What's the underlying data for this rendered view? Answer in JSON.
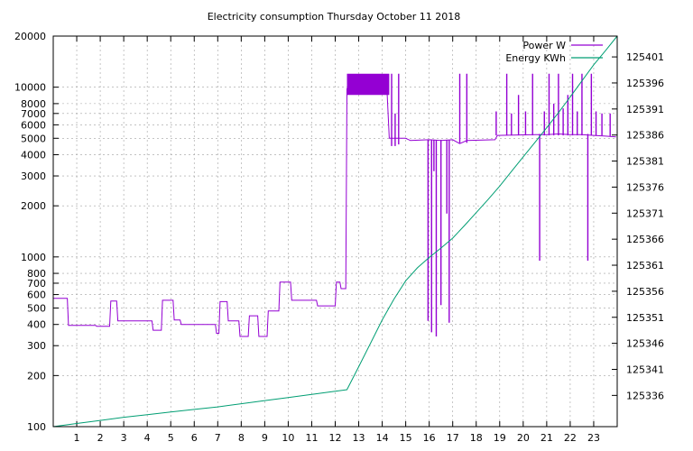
{
  "chart_data": {
    "type": "line",
    "title": "Electricity consumption Thursday October 11 2018",
    "xlabel": "",
    "ylabel": "",
    "y2label": "",
    "grid": true,
    "legend_position": "top-right",
    "x_ticks": [
      1,
      2,
      3,
      4,
      5,
      6,
      7,
      8,
      9,
      10,
      11,
      12,
      13,
      14,
      15,
      16,
      17,
      18,
      19,
      20,
      21,
      22,
      23
    ],
    "xlim": [
      0,
      24
    ],
    "y_scale": "log",
    "ylim": [
      100,
      20000
    ],
    "y_ticks": [
      100,
      200,
      300,
      400,
      500,
      600,
      700,
      800,
      1000,
      2000,
      3000,
      4000,
      5000,
      6000,
      7000,
      8000,
      10000,
      20000
    ],
    "y2lim": [
      125330,
      125405
    ],
    "y2_ticks": [
      125336,
      125341,
      125346,
      125351,
      125356,
      125361,
      125366,
      125371,
      125376,
      125381,
      125386,
      125391,
      125396,
      125401
    ],
    "series": [
      {
        "name": "Power W",
        "axis": "y",
        "color": "#9400d3",
        "points": [
          [
            0.0,
            570
          ],
          [
            0.6,
            570
          ],
          [
            0.65,
            395
          ],
          [
            1.8,
            395
          ],
          [
            1.85,
            390
          ],
          [
            2.4,
            390
          ],
          [
            2.45,
            550
          ],
          [
            2.7,
            550
          ],
          [
            2.75,
            420
          ],
          [
            4.2,
            420
          ],
          [
            4.25,
            370
          ],
          [
            4.6,
            370
          ],
          [
            4.65,
            555
          ],
          [
            5.1,
            555
          ],
          [
            5.15,
            425
          ],
          [
            5.4,
            425
          ],
          [
            5.45,
            400
          ],
          [
            6.9,
            400
          ],
          [
            6.95,
            355
          ],
          [
            7.05,
            355
          ],
          [
            7.1,
            545
          ],
          [
            7.4,
            545
          ],
          [
            7.45,
            420
          ],
          [
            7.9,
            420
          ],
          [
            7.95,
            340
          ],
          [
            8.3,
            340
          ],
          [
            8.35,
            450
          ],
          [
            8.7,
            450
          ],
          [
            8.75,
            340
          ],
          [
            9.1,
            340
          ],
          [
            9.15,
            480
          ],
          [
            9.6,
            480
          ],
          [
            9.65,
            710
          ],
          [
            10.1,
            710
          ],
          [
            10.15,
            555
          ],
          [
            11.2,
            555
          ],
          [
            11.25,
            515
          ],
          [
            12.0,
            515
          ],
          [
            12.05,
            710
          ],
          [
            12.2,
            710
          ],
          [
            12.25,
            650
          ],
          [
            12.45,
            650
          ],
          [
            12.5,
            9800
          ],
          [
            14.2,
            9800
          ],
          [
            14.3,
            5000
          ],
          [
            15.0,
            5000
          ],
          [
            15.2,
            4850
          ],
          [
            16.0,
            4900
          ],
          [
            16.5,
            4850
          ],
          [
            17.0,
            4900
          ],
          [
            17.3,
            4650
          ],
          [
            17.6,
            4850
          ],
          [
            18.8,
            4900
          ],
          [
            18.9,
            5200
          ],
          [
            20.5,
            5250
          ],
          [
            21.0,
            5250
          ],
          [
            21.5,
            5300
          ],
          [
            22.0,
            5250
          ],
          [
            22.5,
            5250
          ],
          [
            23.0,
            5200
          ],
          [
            23.5,
            5150
          ],
          [
            23.95,
            5100
          ]
        ],
        "dense_blocks": [
          {
            "x_from": 12.5,
            "x_to": 14.3,
            "low": 9000,
            "high": 12000
          }
        ],
        "spikes": [
          {
            "x": 14.4,
            "low": 4500,
            "high": 12000
          },
          {
            "x": 14.55,
            "low": 4500,
            "high": 7000
          },
          {
            "x": 14.7,
            "low": 4600,
            "high": 12000
          },
          {
            "x": 15.95,
            "low": 420,
            "high": 4900
          },
          {
            "x": 16.1,
            "low": 360,
            "high": 4900
          },
          {
            "x": 16.2,
            "low": 3200,
            "high": 4900
          },
          {
            "x": 16.3,
            "low": 340,
            "high": 4900
          },
          {
            "x": 16.5,
            "low": 520,
            "high": 4900
          },
          {
            "x": 16.75,
            "low": 1800,
            "high": 4900
          },
          {
            "x": 16.85,
            "low": 410,
            "high": 4900
          },
          {
            "x": 17.3,
            "low": 4700,
            "high": 12000
          },
          {
            "x": 17.6,
            "low": 4700,
            "high": 12000
          },
          {
            "x": 18.85,
            "low": 5200,
            "high": 7200
          },
          {
            "x": 19.3,
            "low": 5200,
            "high": 12000
          },
          {
            "x": 19.5,
            "low": 5200,
            "high": 7000
          },
          {
            "x": 19.8,
            "low": 5200,
            "high": 9000
          },
          {
            "x": 20.1,
            "low": 5200,
            "high": 7200
          },
          {
            "x": 20.4,
            "low": 5200,
            "high": 12000
          },
          {
            "x": 20.7,
            "low": 950,
            "high": 5300
          },
          {
            "x": 20.9,
            "low": 5200,
            "high": 7200
          },
          {
            "x": 21.1,
            "low": 5200,
            "high": 12000
          },
          {
            "x": 21.3,
            "low": 5200,
            "high": 8000
          },
          {
            "x": 21.5,
            "low": 5200,
            "high": 12000
          },
          {
            "x": 21.7,
            "low": 5200,
            "high": 7500
          },
          {
            "x": 21.9,
            "low": 5200,
            "high": 9000
          },
          {
            "x": 22.1,
            "low": 5200,
            "high": 12000
          },
          {
            "x": 22.3,
            "low": 5200,
            "high": 7200
          },
          {
            "x": 22.5,
            "low": 5200,
            "high": 12000
          },
          {
            "x": 22.75,
            "low": 950,
            "high": 5300
          },
          {
            "x": 22.9,
            "low": 5200,
            "high": 12000
          },
          {
            "x": 23.1,
            "low": 5200,
            "high": 7200
          },
          {
            "x": 23.35,
            "low": 5200,
            "high": 7000
          },
          {
            "x": 23.7,
            "low": 5150,
            "high": 7000
          }
        ]
      },
      {
        "name": "Energy KWh",
        "axis": "y2",
        "color": "#009e73",
        "points": [
          [
            0.0,
            125330.0
          ],
          [
            1.0,
            125330.6
          ],
          [
            2.0,
            125331.2
          ],
          [
            3.0,
            125331.8
          ],
          [
            4.0,
            125332.3
          ],
          [
            5.0,
            125332.8
          ],
          [
            6.0,
            125333.3
          ],
          [
            7.0,
            125333.8
          ],
          [
            8.0,
            125334.4
          ],
          [
            9.0,
            125335.0
          ],
          [
            10.0,
            125335.6
          ],
          [
            11.0,
            125336.2
          ],
          [
            12.0,
            125336.8
          ],
          [
            12.5,
            125337.1
          ],
          [
            13.0,
            125341.5
          ],
          [
            13.5,
            125346.0
          ],
          [
            14.0,
            125350.5
          ],
          [
            14.5,
            125354.5
          ],
          [
            15.0,
            125358.0
          ],
          [
            15.5,
            125360.5
          ],
          [
            16.0,
            125362.5
          ],
          [
            16.5,
            125364.3
          ],
          [
            17.0,
            125366.2
          ],
          [
            17.5,
            125368.6
          ],
          [
            18.0,
            125371.1
          ],
          [
            18.5,
            125373.6
          ],
          [
            19.0,
            125376.2
          ],
          [
            19.5,
            125379.0
          ],
          [
            20.0,
            125381.8
          ],
          [
            20.5,
            125384.6
          ],
          [
            21.0,
            125387.4
          ],
          [
            21.5,
            125390.3
          ],
          [
            22.0,
            125393.3
          ],
          [
            22.5,
            125396.4
          ],
          [
            23.0,
            125399.5
          ],
          [
            23.5,
            125402.2
          ],
          [
            24.0,
            125405.0
          ]
        ]
      }
    ]
  }
}
